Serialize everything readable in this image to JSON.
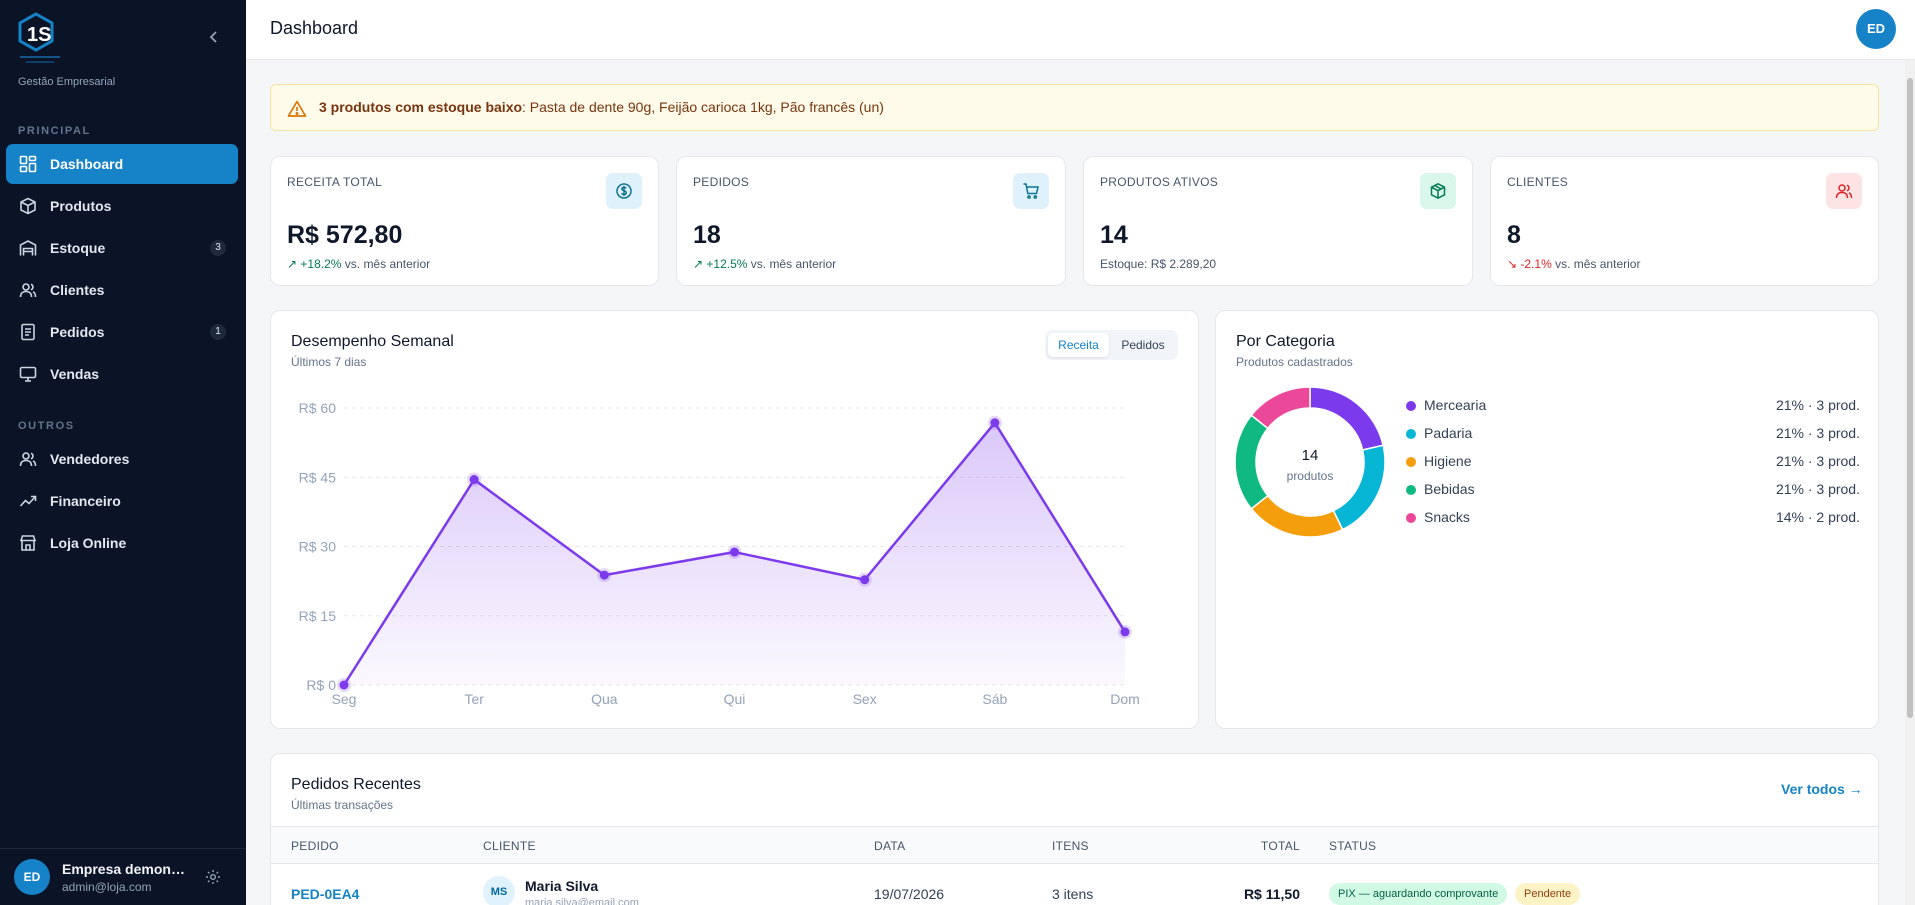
{
  "brand": {
    "subtitle": "Gestão Empresarial"
  },
  "sidebar": {
    "sections": [
      {
        "label": "PRINCIPAL"
      },
      {
        "label": "OUTROS"
      }
    ],
    "items": [
      {
        "label": "Dashboard",
        "icon": "grid-icon",
        "active": true
      },
      {
        "label": "Produtos",
        "icon": "box-icon"
      },
      {
        "label": "Estoque",
        "icon": "warehouse-icon",
        "badge": "3"
      },
      {
        "label": "Clientes",
        "icon": "users-icon"
      },
      {
        "label": "Pedidos",
        "icon": "clipboard-icon",
        "badge": "1"
      },
      {
        "label": "Vendas",
        "icon": "monitor-icon"
      },
      {
        "label": "Vendedores",
        "icon": "users-icon"
      },
      {
        "label": "Financeiro",
        "icon": "trending-up-icon"
      },
      {
        "label": "Loja Online",
        "icon": "store-icon"
      }
    ],
    "user": {
      "initials": "ED",
      "name": "Empresa demonstração",
      "email": "admin@loja.com"
    }
  },
  "header": {
    "title": "Dashboard",
    "avatar_initials": "ED"
  },
  "alert": {
    "bold": "3 produtos com estoque baixo",
    "text": ": Pasta de dente 90g, Feijão carioca 1kg, Pão francês (un)"
  },
  "stats": [
    {
      "label": "RECEITA TOTAL",
      "value": "R$ 572,80",
      "delta": "+18.2%",
      "suffix": " vs. mês anterior",
      "trend": "up",
      "icon": "dollar-icon",
      "icon_bg": "#dff1fb",
      "icon_color": "#0e7490"
    },
    {
      "label": "PEDIDOS",
      "value": "18",
      "delta": "+12.5%",
      "suffix": " vs. mês anterior",
      "trend": "up",
      "icon": "cart-icon",
      "icon_bg": "#dff1fb",
      "icon_color": "#0e7490"
    },
    {
      "label": "PRODUTOS ATIVOS",
      "value": "14",
      "sub": "Estoque: R$ 2.289,20",
      "icon": "package-icon",
      "icon_bg": "#d9f7ea",
      "icon_color": "#047857"
    },
    {
      "label": "CLIENTES",
      "value": "8",
      "delta": "-2.1%",
      "suffix": " vs. mês anterior",
      "trend": "down",
      "icon": "users-icon",
      "icon_bg": "#fde4e4",
      "icon_color": "#dc2626"
    }
  ],
  "weekly": {
    "title": "Desempenho Semanal",
    "subtitle": "Últimos 7 dias",
    "toggle": [
      "Receita",
      "Pedidos"
    ],
    "active_toggle": "Receita"
  },
  "category": {
    "title": "Por Categoria",
    "subtitle": "Produtos cadastrados",
    "center_value": "14",
    "center_label": "produtos"
  },
  "chart_data": [
    {
      "type": "area",
      "title": "Desempenho Semanal",
      "categories": [
        "Seg",
        "Ter",
        "Qua",
        "Qui",
        "Sex",
        "Sáb",
        "Dom"
      ],
      "values": [
        0,
        44.5,
        23.8,
        28.8,
        22.8,
        56.8,
        11.5
      ],
      "y_ticks": [
        "R$ 0",
        "R$ 15",
        "R$ 30",
        "R$ 45",
        "R$ 60"
      ],
      "ylim": [
        0,
        60
      ],
      "grid": true,
      "color": "#7c3aed"
    },
    {
      "type": "pie",
      "title": "Por Categoria",
      "categories": [
        "Mercearia",
        "Padaria",
        "Higiene",
        "Bebidas",
        "Snacks"
      ],
      "values": [
        3,
        3,
        3,
        3,
        2
      ],
      "labels": [
        "21% · 3 prod.",
        "21% · 3 prod.",
        "21% · 3 prod.",
        "21% · 3 prod.",
        "14% · 2 prod."
      ],
      "colors": [
        "#7c3aed",
        "#06b6d4",
        "#f59e0b",
        "#10b981",
        "#ec4899"
      ],
      "legend": "right"
    }
  ],
  "orders": {
    "title": "Pedidos Recentes",
    "subtitle": "Últimas transações",
    "view_all": "Ver todos →",
    "columns": [
      "PEDIDO",
      "CLIENTE",
      "DATA",
      "ITENS",
      "TOTAL",
      "STATUS"
    ],
    "rows": [
      {
        "id": "PED-0EA4",
        "initials": "MS",
        "client": "Maria Silva",
        "email": "maria.silva@email.com",
        "date": "19/07/2026",
        "items": "3 itens",
        "total": "R$ 11,50",
        "payment": "PIX — aguardando comprovante",
        "status": "Pendente"
      }
    ]
  }
}
